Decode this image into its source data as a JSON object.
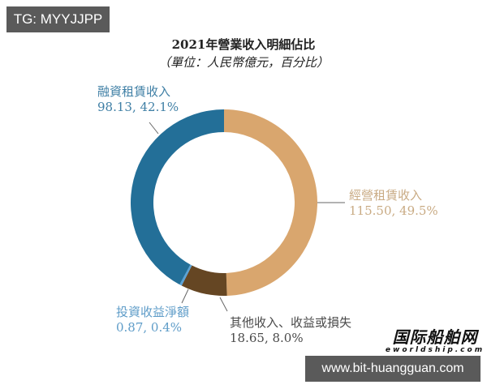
{
  "watermark": {
    "top_left": "TG: MYYJJPP",
    "bottom_right_url": "www.bit-huangguan.com",
    "logo_cn": "国际船舶网",
    "logo_en": "eworldship.com"
  },
  "chart_data": {
    "type": "pie",
    "variant": "donut",
    "title": "2021年營業收入明細佔比",
    "subtitle": "（單位：人民幣億元，百分比）",
    "unit": "人民幣億元",
    "start_angle": "12 o'clock",
    "direction": "clockwise",
    "categories": [
      "經營租賃收入",
      "其他收入、收益或損失",
      "投資收益淨額",
      "融資租賃收入"
    ],
    "values": [
      115.5,
      18.65,
      0.87,
      98.13
    ],
    "percentages": [
      49.5,
      8.0,
      0.4,
      42.1
    ],
    "colors": [
      "#d9a66e",
      "#654623",
      "#5aa2d6",
      "#236f98"
    ],
    "labels": [
      {
        "name": "融資租賃收入",
        "value_text": "98.13, 42.1%",
        "color": "#3f7fa5"
      },
      {
        "name": "經營租賃收入",
        "value_text": "115.50, 49.5%",
        "color": "#c9ab84"
      },
      {
        "name": "投資收益淨額",
        "value_text": "0.87, 0.4%",
        "color": "#5e9cc8"
      },
      {
        "name": "其他收入、收益或損失",
        "value_text": "18.65, 8.0%",
        "color": "#4a4a4a"
      }
    ]
  }
}
